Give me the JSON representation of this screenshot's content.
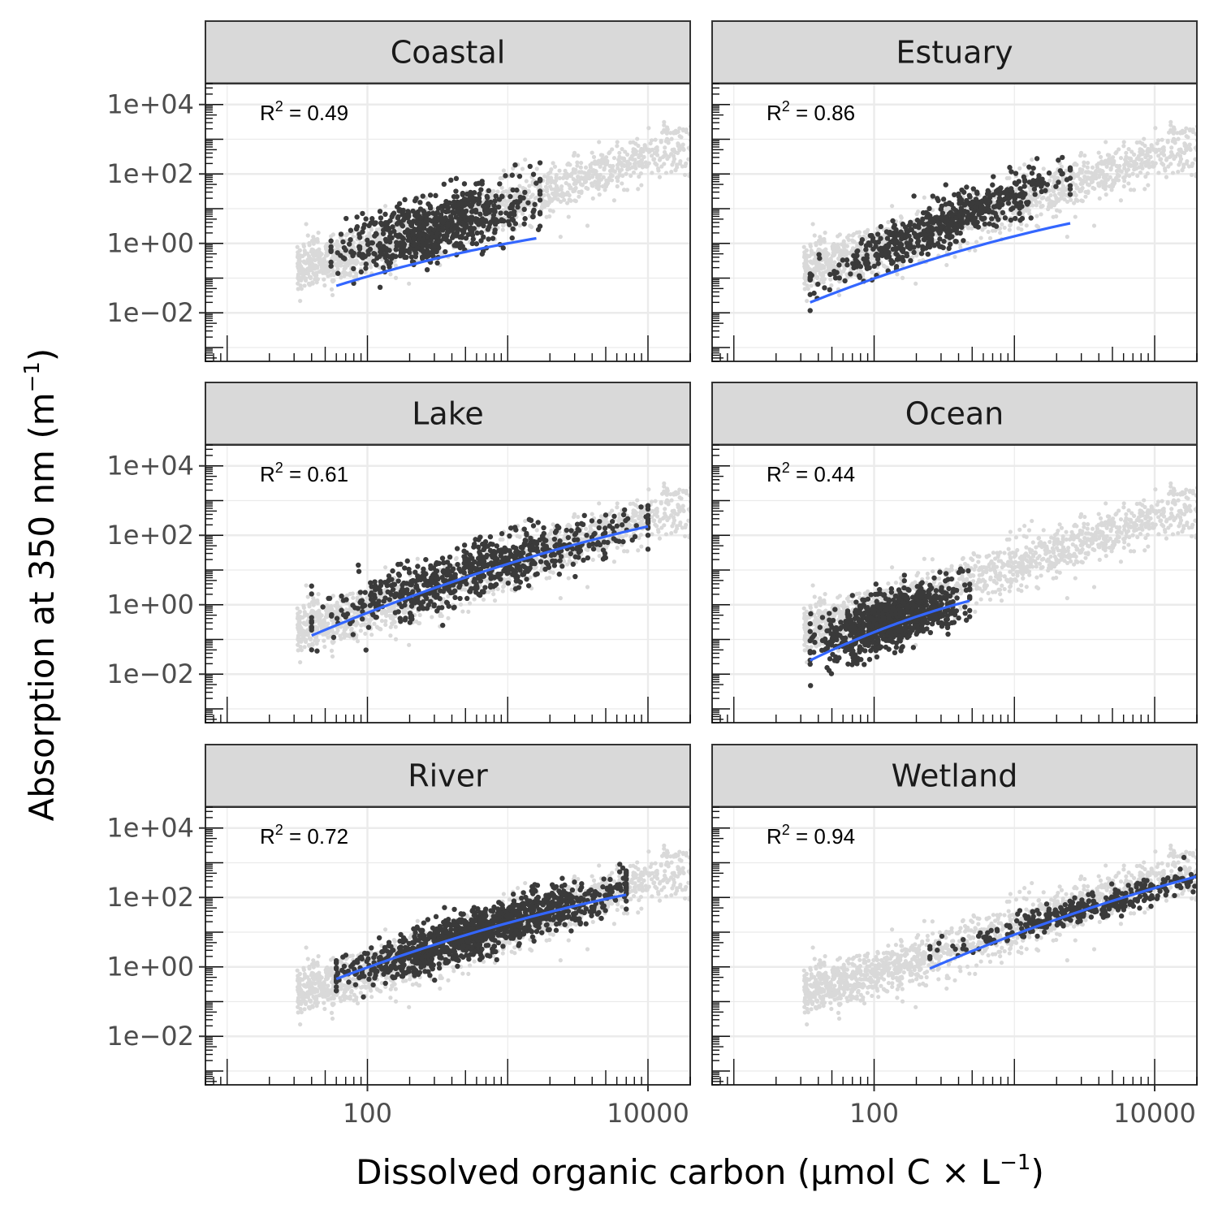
{
  "chart_data": {
    "type": "scatter",
    "layout": "facet-grid-3x2",
    "xlabel": "Dissolved organic carbon (μmol C × L",
    "xlabel_sup": "−1",
    "xlabel_close": ")",
    "ylabel": "Absorption at 350 nm (m",
    "ylabel_sup": "−1",
    "ylabel_close": ")",
    "x_scale": "log10",
    "y_scale": "log10",
    "xlim": [
      7,
      20000
    ],
    "ylim": [
      0.0004,
      40000
    ],
    "x_ticks": [
      {
        "value": 100,
        "label": "100"
      },
      {
        "value": 10000,
        "label": "10000"
      }
    ],
    "y_ticks": [
      {
        "value": 10000,
        "label": "1e+04"
      },
      {
        "value": 100,
        "label": "1e+02"
      },
      {
        "value": 1,
        "label": "1e+00"
      },
      {
        "value": 0.01,
        "label": "1e−02"
      }
    ],
    "grid": true,
    "background_points": "all ecosystems (light grey)",
    "colors": {
      "background_points": "#d9d9d9",
      "points": "#3a3a3a",
      "fit_line": "#3366ff",
      "strip_fill": "#d9d9d9",
      "grid": "#ebebeb",
      "panel_border": "#333333"
    },
    "panels": [
      {
        "name": "Coastal",
        "r2_prefix": "R",
        "r2_sup": "2",
        "r2_value": " = 0.49",
        "x_range": [
          55,
          1700
        ],
        "center_slope": 1.0,
        "center_intercept": -2.0,
        "y_spread": 0.45,
        "n_points": 700,
        "fit": {
          "x": [
            60,
            1600
          ],
          "y": [
            0.06,
            1.4
          ]
        }
      },
      {
        "name": "Estuary",
        "r2_prefix": "R",
        "r2_sup": "2",
        "r2_value": " = 0.86",
        "x_range": [
          35,
          2500
        ],
        "center_slope": 1.7,
        "center_intercept": -3.7,
        "y_spread": 0.32,
        "n_points": 600,
        "fit": {
          "x": [
            35,
            2500
          ],
          "y": [
            0.02,
            3.8
          ]
        }
      },
      {
        "name": "Lake",
        "r2_prefix": "R",
        "r2_sup": "2",
        "r2_value": " = 0.61",
        "x_range": [
          40,
          10000
        ],
        "center_slope": 1.15,
        "center_intercept": -2.2,
        "y_spread": 0.4,
        "n_points": 700,
        "fit": {
          "x": [
            40,
            10000
          ],
          "y": [
            0.13,
            180
          ]
        }
      },
      {
        "name": "Ocean",
        "r2_prefix": "R",
        "r2_sup": "2",
        "r2_value": " = 0.44",
        "x_range": [
          35,
          480
        ],
        "center_slope": 1.3,
        "center_intercept": -3.2,
        "y_spread": 0.4,
        "n_points": 900,
        "fit": {
          "x": [
            35,
            480
          ],
          "y": [
            0.025,
            1.3
          ]
        }
      },
      {
        "name": "River",
        "r2_prefix": "R",
        "r2_sup": "2",
        "r2_value": " = 0.72",
        "x_range": [
          60,
          7000
        ],
        "center_slope": 1.25,
        "center_intercept": -2.5,
        "y_spread": 0.33,
        "n_points": 1200,
        "fit": {
          "x": [
            60,
            7000
          ],
          "y": [
            0.45,
            120
          ]
        }
      },
      {
        "name": "Wetland",
        "r2_prefix": "R",
        "r2_sup": "2",
        "r2_value": " = 0.94",
        "x_range": [
          250,
          50000
        ],
        "center_slope": 1.1,
        "center_intercept": -2.2,
        "y_spread": 0.18,
        "n_points": 350,
        "fit": {
          "x": [
            250,
            50000
          ],
          "y": [
            0.9,
            1000
          ]
        }
      }
    ]
  }
}
